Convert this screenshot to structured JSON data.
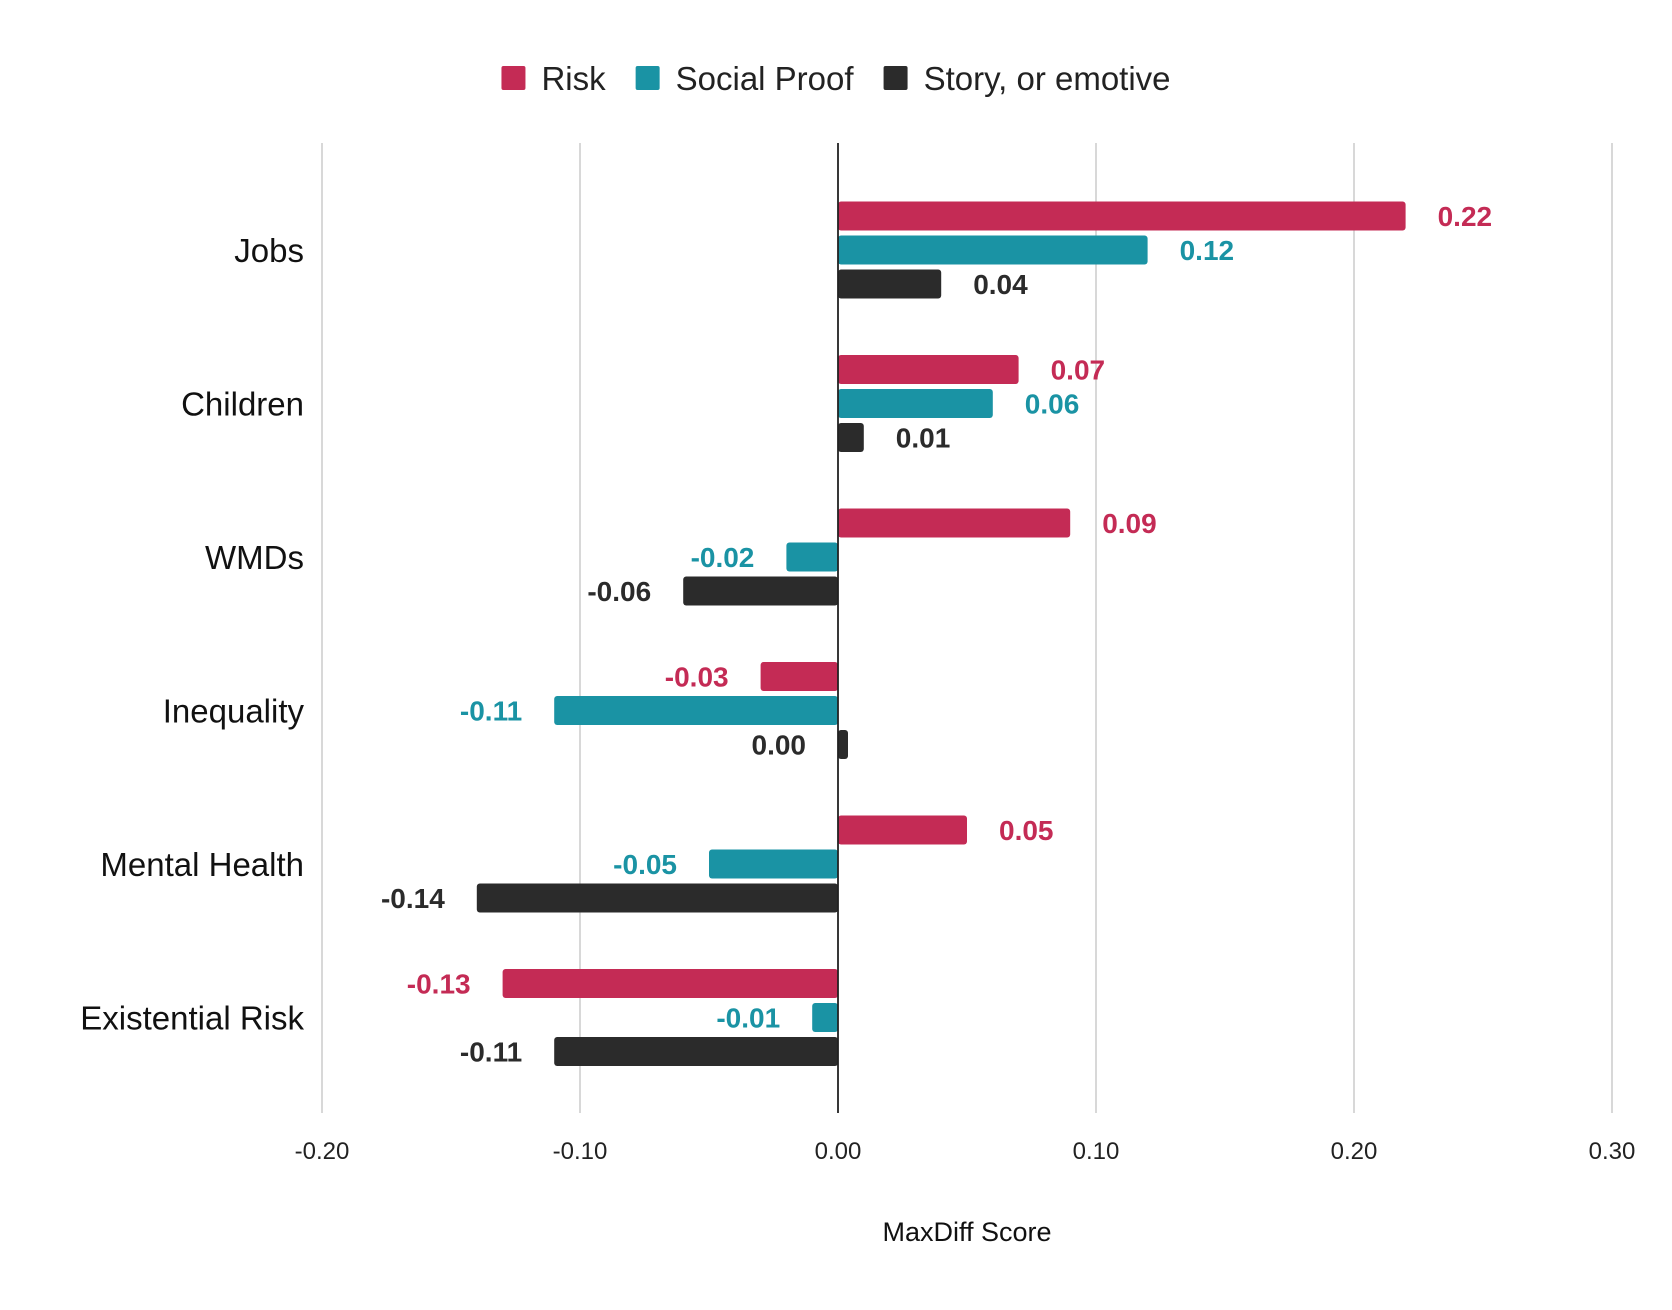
{
  "chart_data": {
    "type": "bar",
    "orientation": "horizontal",
    "categories": [
      "Jobs",
      "Children",
      "WMDs",
      "Inequality",
      "Mental Health",
      "Existential Risk"
    ],
    "series": [
      {
        "name": "Risk",
        "color": "#c42b55",
        "values": [
          0.22,
          0.07,
          0.09,
          -0.03,
          0.05,
          -0.13
        ],
        "labels": [
          "0.22",
          "0.07",
          "0.09",
          "-0.03",
          "0.05",
          "-0.13"
        ]
      },
      {
        "name": "Social Proof",
        "color": "#1a93a4",
        "values": [
          0.12,
          0.06,
          -0.02,
          -0.11,
          -0.05,
          -0.01
        ],
        "labels": [
          "0.12",
          "0.06",
          "-0.02",
          "-0.11",
          "-0.05",
          "-0.01"
        ]
      },
      {
        "name": "Story, or emotive",
        "color": "#2b2b2b",
        "values": [
          0.04,
          0.01,
          -0.06,
          0.0,
          -0.14,
          -0.11
        ],
        "labels": [
          "0.04",
          "0.01",
          "-0.06",
          "0.00",
          "-0.14",
          "-0.11"
        ]
      }
    ],
    "xlabel": "MaxDiff Score",
    "ylabel": "",
    "xlim": [
      -0.2,
      0.3
    ],
    "ticks": [
      -0.2,
      -0.1,
      0.0,
      0.1,
      0.2,
      0.3
    ],
    "tick_labels": [
      "-0.20",
      "-0.10",
      "0.00",
      "0.10",
      "0.20",
      "0.30"
    ],
    "grid": true,
    "legend_position": "top"
  }
}
